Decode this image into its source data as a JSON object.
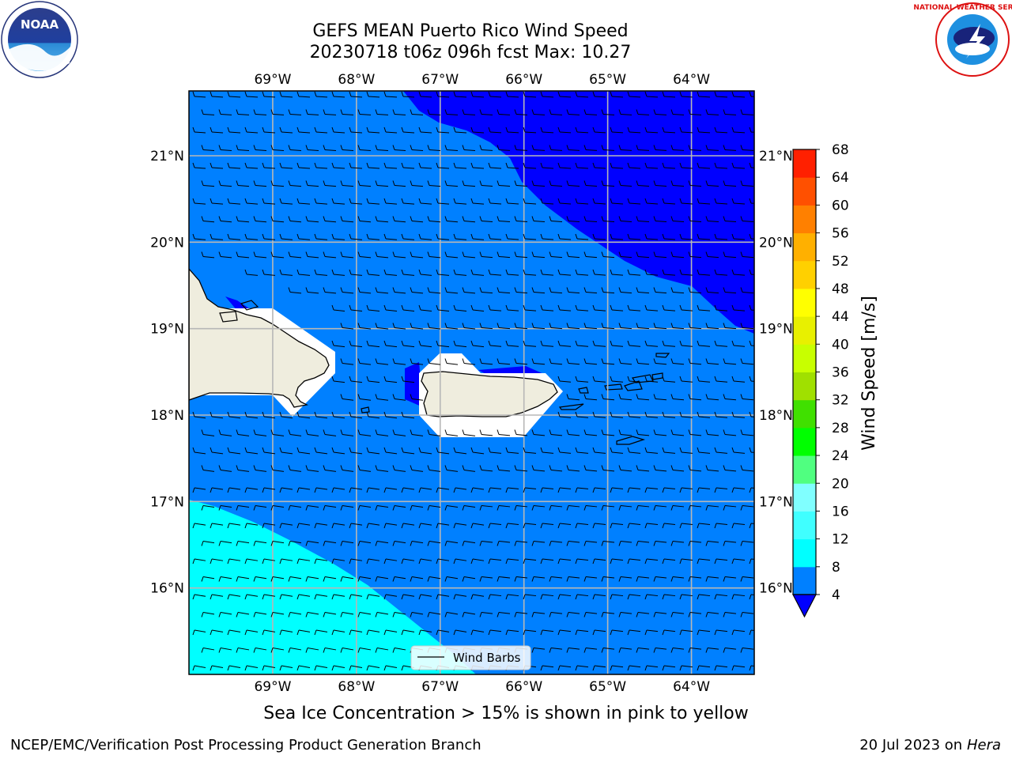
{
  "title_line1": "GEFS MEAN Puerto Rico Wind Speed",
  "title_line2": "20230718 t06z 096h fcst   Max: 10.27",
  "footnote": "Sea Ice Concentration > 15% is shown in pink to yellow",
  "credit_left": "NCEP/EMC/Verification Post Processing Product Generation Branch",
  "credit_date": "20 Jul 2023 on ",
  "credit_host": "Hera",
  "logos": {
    "left": "NOAA",
    "right_text": "NATIONAL WEATHER SERVICE"
  },
  "legend": {
    "label": "Wind Barbs"
  },
  "colors": {
    "ocean_4_8": "#0080ff",
    "ocean_0_4": "#0000ff",
    "ocean_8_12": "#00ffff",
    "land": "#efedde"
  },
  "chart_data": {
    "type": "heatmap",
    "map_region": "Puerto Rico",
    "lon_ticks": [
      "69°W",
      "68°W",
      "67°W",
      "66°W",
      "65°W",
      "64°W"
    ],
    "lat_ticks": [
      "21°N",
      "20°N",
      "19°N",
      "18°N",
      "17°N",
      "16°N"
    ],
    "lon_range": [
      -70.0,
      -63.25
    ],
    "lat_range": [
      15.0,
      21.75
    ],
    "grid": true,
    "colorbar": {
      "label": "Wind Speed [m/s]",
      "ticks": [
        "68",
        "64",
        "60",
        "56",
        "52",
        "48",
        "44",
        "40",
        "36",
        "32",
        "28",
        "24",
        "20",
        "16",
        "12",
        "8",
        "4"
      ],
      "levels": [
        4,
        8,
        12,
        16,
        20,
        24,
        28,
        32,
        36,
        40,
        44,
        48,
        52,
        56,
        60,
        64,
        68
      ],
      "colors": [
        "#0080ff",
        "#00ffff",
        "#40ffff",
        "#80ffff",
        "#50ff80",
        "#00ff00",
        "#40e000",
        "#a0e000",
        "#c8ff00",
        "#e8f000",
        "#ffff00",
        "#ffd000",
        "#ffb000",
        "#ff8000",
        "#ff5000",
        "#ff2000",
        "#ff0000"
      ],
      "under_color": "#0000ff",
      "extend": "min"
    },
    "max_value": 10.27
  }
}
